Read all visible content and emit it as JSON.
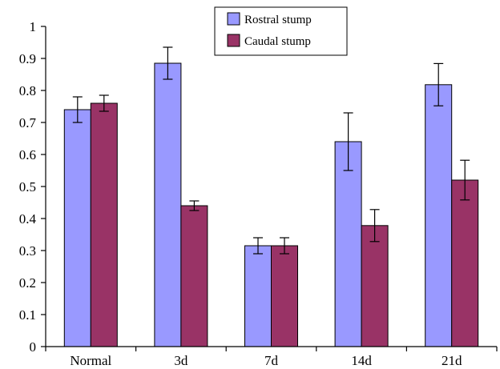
{
  "chart_data": {
    "type": "bar",
    "title": "",
    "xlabel": "",
    "ylabel": "",
    "ylim": [
      0,
      1
    ],
    "yticks": [
      0,
      0.1,
      0.2,
      0.3,
      0.4,
      0.5,
      0.6,
      0.7,
      0.8,
      0.9,
      1
    ],
    "ytick_labels": [
      "0",
      "0.1",
      "0.2",
      "0.3",
      "0.4",
      "0.5",
      "0.6",
      "0.7",
      "0.8",
      "0.9",
      "1"
    ],
    "categories": [
      "Normal",
      "3d",
      "7d",
      "14d",
      "21d"
    ],
    "series": [
      {
        "name": "Rostral stump",
        "color": "#9999ff",
        "values": [
          0.74,
          0.885,
          0.315,
          0.64,
          0.818
        ],
        "errors": [
          0.04,
          0.05,
          0.025,
          0.09,
          0.066
        ]
      },
      {
        "name": "Caudal stump",
        "color": "#993366",
        "values": [
          0.76,
          0.44,
          0.315,
          0.378,
          0.52
        ],
        "errors": [
          0.025,
          0.015,
          0.025,
          0.05,
          0.062
        ]
      }
    ],
    "legend": {
      "position": "top-center"
    },
    "grid": false
  }
}
